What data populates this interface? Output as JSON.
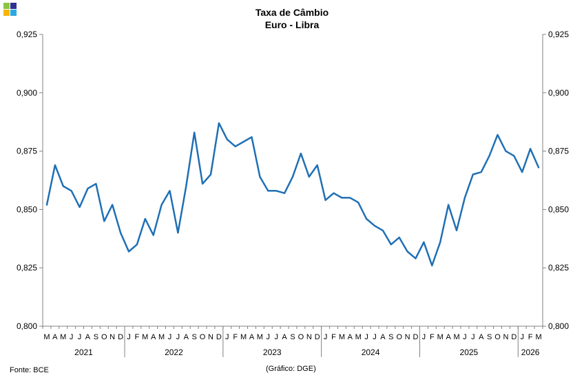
{
  "logo": {
    "colors": [
      "#8cc63f",
      "#2e3192",
      "#f7b500",
      "#29abe2"
    ]
  },
  "chart_data": {
    "type": "line",
    "title": "Taxa de Câmbio",
    "subtitle": "Euro - Libra",
    "ylim": [
      0.8,
      0.925
    ],
    "yticks": [
      "0,800",
      "0,825",
      "0,850",
      "0,875",
      "0,900",
      "0,925"
    ],
    "ytick_values": [
      0.8,
      0.825,
      0.85,
      0.875,
      0.9,
      0.925
    ],
    "grid": false,
    "legend": "none",
    "series_color": "#1f6fb4",
    "x": [
      "2021-03",
      "2021-04",
      "2021-05",
      "2021-06",
      "2021-07",
      "2021-08",
      "2021-09",
      "2021-10",
      "2021-11",
      "2021-12",
      "2022-01",
      "2022-02",
      "2022-03",
      "2022-04",
      "2022-05",
      "2022-06",
      "2022-07",
      "2022-08",
      "2022-09",
      "2022-10",
      "2022-11",
      "2022-12",
      "2023-01",
      "2023-02",
      "2023-03",
      "2023-04",
      "2023-05",
      "2023-06",
      "2023-07",
      "2023-08",
      "2023-09",
      "2023-10",
      "2023-11",
      "2023-12",
      "2024-01",
      "2024-02",
      "2024-03",
      "2024-04",
      "2024-05",
      "2024-06",
      "2024-07",
      "2024-08",
      "2024-09",
      "2024-10",
      "2024-11",
      "2024-12",
      "2025-01",
      "2025-02",
      "2025-03",
      "2025-04",
      "2025-05",
      "2025-06",
      "2025-07",
      "2025-08",
      "2025-09",
      "2025-10",
      "2025-11",
      "2025-12",
      "2026-01",
      "2026-02",
      "2026-03"
    ],
    "month_labels": [
      "M",
      "A",
      "M",
      "J",
      "J",
      "A",
      "S",
      "O",
      "N",
      "D",
      "J",
      "F",
      "M",
      "A",
      "M",
      "J",
      "J",
      "A",
      "S",
      "O",
      "N",
      "D",
      "J",
      "F",
      "M",
      "A",
      "M",
      "J",
      "J",
      "A",
      "S",
      "O",
      "N",
      "D",
      "J",
      "F",
      "M",
      "A",
      "M",
      "J",
      "J",
      "A",
      "S",
      "O",
      "N",
      "D",
      "J",
      "F",
      "M",
      "A",
      "M",
      "J",
      "J",
      "A",
      "S",
      "O",
      "N",
      "D",
      "J",
      "F",
      "M"
    ],
    "years": [
      {
        "label": "2021",
        "months": 10
      },
      {
        "label": "2022",
        "months": 12
      },
      {
        "label": "2023",
        "months": 12
      },
      {
        "label": "2024",
        "months": 12
      },
      {
        "label": "2025",
        "months": 12
      },
      {
        "label": "2026",
        "months": 3
      }
    ],
    "series": [
      {
        "values": [
          0.852,
          0.869,
          0.86,
          0.858,
          0.851,
          0.859,
          0.861,
          0.845,
          0.852,
          0.84,
          0.832,
          0.835,
          0.846,
          0.839,
          0.852,
          0.858,
          0.84,
          0.86,
          0.883,
          0.861,
          0.865,
          0.887,
          0.88,
          0.877,
          0.879,
          0.881,
          0.864,
          0.858,
          0.858,
          0.857,
          0.864,
          0.874,
          0.864,
          0.869,
          0.854,
          0.857,
          0.855,
          0.855,
          0.853,
          0.846,
          0.843,
          0.841,
          0.835,
          0.838,
          0.832,
          0.829,
          0.836,
          0.826,
          0.836,
          0.852,
          0.841,
          0.855,
          0.865,
          0.866,
          0.873,
          0.882,
          0.875,
          0.873,
          0.866,
          0.876,
          0.868
        ]
      }
    ]
  },
  "footer": {
    "source": "Fonte:  BCE",
    "credit": "(Gráfico: DGE)"
  }
}
